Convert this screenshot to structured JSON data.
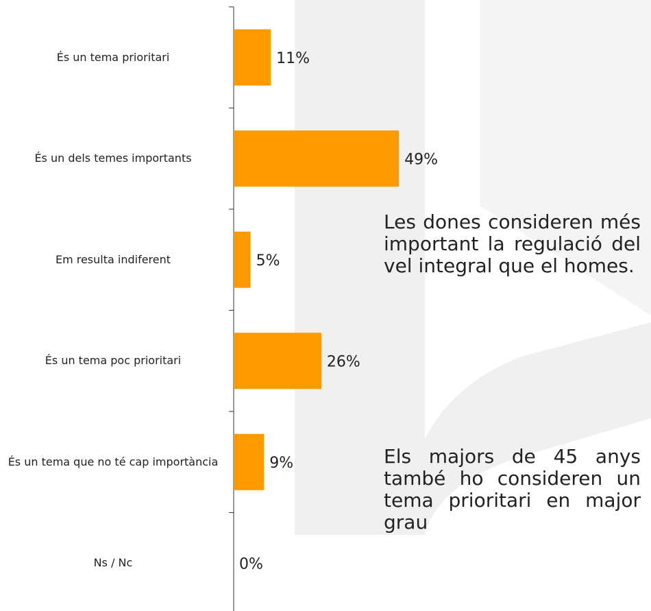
{
  "chart_data": {
    "type": "bar",
    "orientation": "horizontal",
    "categories": [
      "És un tema prioritari",
      "És un dels temes importants",
      "Em resulta indiferent",
      "És un tema poc prioritari",
      "És un tema que no té cap importància",
      "Ns / Nc"
    ],
    "values": [
      11,
      49,
      5,
      26,
      9,
      0
    ],
    "value_labels": [
      "11%",
      "49%",
      "5%",
      "26%",
      "9%",
      "0%"
    ],
    "color": "#ff9900",
    "annotations": [
      "Les dones consideren més important la regulació del vel integral que el homes.",
      "Els majors de 45 anys també ho consideren un tema prioritari en major grau"
    ]
  }
}
